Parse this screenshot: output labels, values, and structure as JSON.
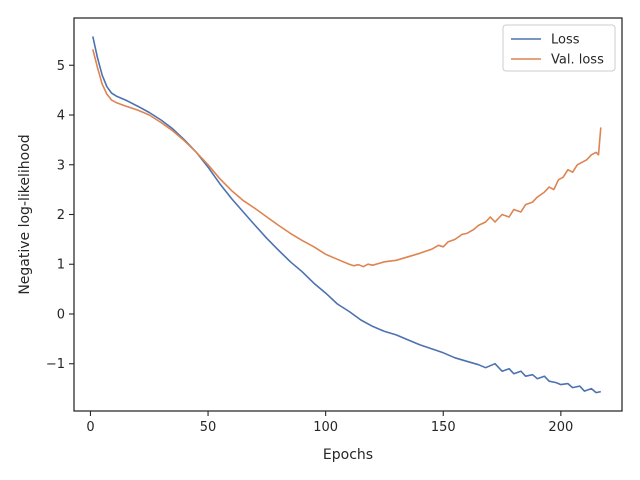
{
  "chart_data": {
    "type": "line",
    "title": "",
    "xlabel": "Epochs",
    "ylabel": "Negative log-likelihood",
    "xlim": [
      -7,
      226
    ],
    "ylim": [
      -1.95,
      5.95
    ],
    "x_ticks": [
      0,
      50,
      100,
      150,
      200
    ],
    "y_ticks": [
      -1,
      0,
      1,
      2,
      3,
      4,
      5
    ],
    "y_tick_labels": [
      "−1",
      "0",
      "1",
      "2",
      "3",
      "4",
      "5"
    ],
    "grid": false,
    "legend": {
      "location": "upper right",
      "entries": [
        "Loss",
        "Val. loss"
      ]
    },
    "colors": {
      "Loss": "#4c72b0",
      "Val. loss": "#dd8452",
      "axes": "#262626"
    },
    "series": [
      {
        "name": "Loss",
        "color": "#4c72b0",
        "x": [
          1,
          3,
          5,
          7,
          9,
          11,
          15,
          20,
          25,
          30,
          35,
          40,
          45,
          50,
          55,
          60,
          65,
          70,
          75,
          80,
          85,
          90,
          95,
          100,
          105,
          110,
          115,
          120,
          125,
          130,
          135,
          140,
          145,
          150,
          155,
          160,
          165,
          168,
          172,
          175,
          178,
          180,
          183,
          185,
          188,
          190,
          193,
          195,
          198,
          200,
          203,
          205,
          208,
          210,
          213,
          215,
          217
        ],
        "y": [
          5.58,
          5.15,
          4.8,
          4.57,
          4.44,
          4.38,
          4.3,
          4.18,
          4.05,
          3.9,
          3.72,
          3.5,
          3.25,
          2.95,
          2.62,
          2.32,
          2.05,
          1.78,
          1.52,
          1.28,
          1.05,
          0.85,
          0.62,
          0.42,
          0.2,
          0.05,
          -0.12,
          -0.25,
          -0.35,
          -0.42,
          -0.52,
          -0.62,
          -0.7,
          -0.78,
          -0.88,
          -0.95,
          -1.02,
          -1.08,
          -1.0,
          -1.15,
          -1.1,
          -1.2,
          -1.15,
          -1.25,
          -1.22,
          -1.3,
          -1.25,
          -1.35,
          -1.38,
          -1.42,
          -1.4,
          -1.48,
          -1.45,
          -1.55,
          -1.5,
          -1.58,
          -1.56
        ]
      },
      {
        "name": "Val. loss",
        "color": "#dd8452",
        "x": [
          1,
          3,
          5,
          7,
          9,
          11,
          15,
          20,
          25,
          30,
          35,
          40,
          45,
          50,
          55,
          60,
          65,
          70,
          75,
          80,
          85,
          90,
          95,
          100,
          105,
          110,
          112,
          114,
          116,
          118,
          120,
          125,
          130,
          135,
          140,
          145,
          148,
          150,
          152,
          155,
          158,
          160,
          163,
          165,
          168,
          170,
          172,
          175,
          178,
          180,
          183,
          185,
          188,
          190,
          193,
          195,
          197,
          199,
          201,
          203,
          205,
          207,
          209,
          211,
          213,
          215,
          216,
          217
        ],
        "y": [
          5.32,
          4.95,
          4.62,
          4.42,
          4.3,
          4.25,
          4.18,
          4.1,
          4.0,
          3.85,
          3.68,
          3.48,
          3.25,
          3.0,
          2.72,
          2.48,
          2.28,
          2.12,
          1.95,
          1.78,
          1.62,
          1.48,
          1.35,
          1.2,
          1.1,
          1.0,
          0.97,
          0.99,
          0.95,
          1.0,
          0.98,
          1.05,
          1.08,
          1.15,
          1.22,
          1.3,
          1.38,
          1.35,
          1.45,
          1.5,
          1.6,
          1.62,
          1.7,
          1.78,
          1.85,
          1.95,
          1.85,
          2.0,
          1.95,
          2.1,
          2.05,
          2.2,
          2.25,
          2.35,
          2.45,
          2.55,
          2.5,
          2.7,
          2.75,
          2.9,
          2.85,
          3.0,
          3.05,
          3.1,
          3.2,
          3.25,
          3.2,
          3.75
        ]
      }
    ]
  }
}
